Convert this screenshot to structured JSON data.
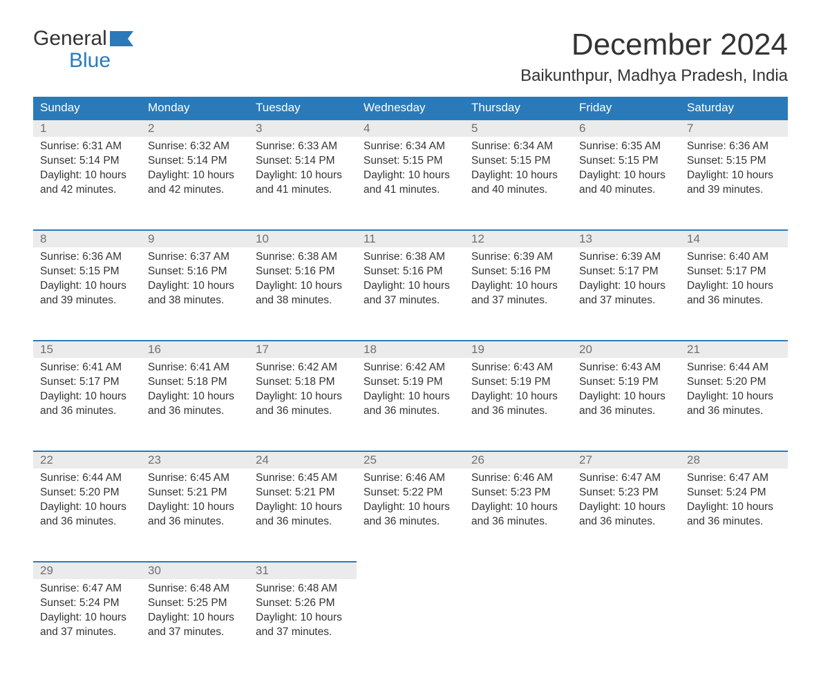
{
  "brand": {
    "line1": "General",
    "line2": "Blue"
  },
  "title": "December 2024",
  "location": "Baikunthpur, Madhya Pradesh, India",
  "style": {
    "header_bg": "#2a7ab9",
    "header_fg": "#ffffff",
    "daynum_bg": "#ebebeb",
    "daynum_fg": "#6f6f6f",
    "rule_color": "#2a7ab9",
    "body_color": "#333333",
    "page_bg": "#ffffff",
    "font_family": "Arial",
    "title_fontsize_pt": 33,
    "location_fontsize_pt": 18,
    "header_fontsize_pt": 13,
    "cell_fontsize_pt": 12
  },
  "weekdays": [
    "Sunday",
    "Monday",
    "Tuesday",
    "Wednesday",
    "Thursday",
    "Friday",
    "Saturday"
  ],
  "weeks": [
    [
      {
        "d": "1",
        "sr": "6:31 AM",
        "ss": "5:14 PM",
        "dl": "10 hours and 42 minutes."
      },
      {
        "d": "2",
        "sr": "6:32 AM",
        "ss": "5:14 PM",
        "dl": "10 hours and 42 minutes."
      },
      {
        "d": "3",
        "sr": "6:33 AM",
        "ss": "5:14 PM",
        "dl": "10 hours and 41 minutes."
      },
      {
        "d": "4",
        "sr": "6:34 AM",
        "ss": "5:15 PM",
        "dl": "10 hours and 41 minutes."
      },
      {
        "d": "5",
        "sr": "6:34 AM",
        "ss": "5:15 PM",
        "dl": "10 hours and 40 minutes."
      },
      {
        "d": "6",
        "sr": "6:35 AM",
        "ss": "5:15 PM",
        "dl": "10 hours and 40 minutes."
      },
      {
        "d": "7",
        "sr": "6:36 AM",
        "ss": "5:15 PM",
        "dl": "10 hours and 39 minutes."
      }
    ],
    [
      {
        "d": "8",
        "sr": "6:36 AM",
        "ss": "5:15 PM",
        "dl": "10 hours and 39 minutes."
      },
      {
        "d": "9",
        "sr": "6:37 AM",
        "ss": "5:16 PM",
        "dl": "10 hours and 38 minutes."
      },
      {
        "d": "10",
        "sr": "6:38 AM",
        "ss": "5:16 PM",
        "dl": "10 hours and 38 minutes."
      },
      {
        "d": "11",
        "sr": "6:38 AM",
        "ss": "5:16 PM",
        "dl": "10 hours and 37 minutes."
      },
      {
        "d": "12",
        "sr": "6:39 AM",
        "ss": "5:16 PM",
        "dl": "10 hours and 37 minutes."
      },
      {
        "d": "13",
        "sr": "6:39 AM",
        "ss": "5:17 PM",
        "dl": "10 hours and 37 minutes."
      },
      {
        "d": "14",
        "sr": "6:40 AM",
        "ss": "5:17 PM",
        "dl": "10 hours and 36 minutes."
      }
    ],
    [
      {
        "d": "15",
        "sr": "6:41 AM",
        "ss": "5:17 PM",
        "dl": "10 hours and 36 minutes."
      },
      {
        "d": "16",
        "sr": "6:41 AM",
        "ss": "5:18 PM",
        "dl": "10 hours and 36 minutes."
      },
      {
        "d": "17",
        "sr": "6:42 AM",
        "ss": "5:18 PM",
        "dl": "10 hours and 36 minutes."
      },
      {
        "d": "18",
        "sr": "6:42 AM",
        "ss": "5:19 PM",
        "dl": "10 hours and 36 minutes."
      },
      {
        "d": "19",
        "sr": "6:43 AM",
        "ss": "5:19 PM",
        "dl": "10 hours and 36 minutes."
      },
      {
        "d": "20",
        "sr": "6:43 AM",
        "ss": "5:19 PM",
        "dl": "10 hours and 36 minutes."
      },
      {
        "d": "21",
        "sr": "6:44 AM",
        "ss": "5:20 PM",
        "dl": "10 hours and 36 minutes."
      }
    ],
    [
      {
        "d": "22",
        "sr": "6:44 AM",
        "ss": "5:20 PM",
        "dl": "10 hours and 36 minutes."
      },
      {
        "d": "23",
        "sr": "6:45 AM",
        "ss": "5:21 PM",
        "dl": "10 hours and 36 minutes."
      },
      {
        "d": "24",
        "sr": "6:45 AM",
        "ss": "5:21 PM",
        "dl": "10 hours and 36 minutes."
      },
      {
        "d": "25",
        "sr": "6:46 AM",
        "ss": "5:22 PM",
        "dl": "10 hours and 36 minutes."
      },
      {
        "d": "26",
        "sr": "6:46 AM",
        "ss": "5:23 PM",
        "dl": "10 hours and 36 minutes."
      },
      {
        "d": "27",
        "sr": "6:47 AM",
        "ss": "5:23 PM",
        "dl": "10 hours and 36 minutes."
      },
      {
        "d": "28",
        "sr": "6:47 AM",
        "ss": "5:24 PM",
        "dl": "10 hours and 36 minutes."
      }
    ],
    [
      {
        "d": "29",
        "sr": "6:47 AM",
        "ss": "5:24 PM",
        "dl": "10 hours and 37 minutes."
      },
      {
        "d": "30",
        "sr": "6:48 AM",
        "ss": "5:25 PM",
        "dl": "10 hours and 37 minutes."
      },
      {
        "d": "31",
        "sr": "6:48 AM",
        "ss": "5:26 PM",
        "dl": "10 hours and 37 minutes."
      },
      null,
      null,
      null,
      null
    ]
  ],
  "labels": {
    "sunrise": "Sunrise:",
    "sunset": "Sunset:",
    "daylight": "Daylight:"
  }
}
